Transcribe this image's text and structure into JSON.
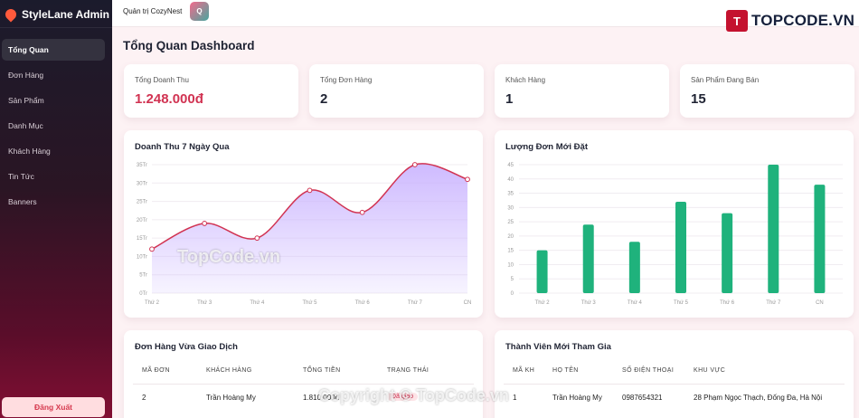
{
  "app": {
    "brand": "StyleLane Admin",
    "logo_icon": "flame-icon"
  },
  "sidebar": {
    "items": [
      {
        "label": "Tổng Quan",
        "active": true
      },
      {
        "label": "Đơn Hàng",
        "active": false
      },
      {
        "label": "Sản Phẩm",
        "active": false
      },
      {
        "label": "Danh Mục",
        "active": false
      },
      {
        "label": "Khách Hàng",
        "active": false
      },
      {
        "label": "Tin Tức",
        "active": false
      },
      {
        "label": "Banners",
        "active": false
      }
    ],
    "logout": "Đăng Xuất"
  },
  "topbar": {
    "title": "Quản trị CozyNest",
    "avatar_letter": "Q"
  },
  "watermark": {
    "logo_letter": "T",
    "logo_text": "TOPCODE.VN",
    "center": "TopCode.vn",
    "bottom": "Copyright © TopCode.vn"
  },
  "page": {
    "title": "Tổng Quan Dashboard"
  },
  "stats": [
    {
      "label": "Tổng Doanh Thu",
      "value": "1.248.000đ"
    },
    {
      "label": "Tổng Đơn Hàng",
      "value": "2"
    },
    {
      "label": "Khách Hàng",
      "value": "1"
    },
    {
      "label": "Sản Phẩm Đang Bán",
      "value": "15"
    }
  ],
  "chart_data": [
    {
      "type": "area",
      "title": "Doanh Thu 7 Ngày Qua",
      "categories": [
        "Thứ 2",
        "Thứ 3",
        "Thứ 4",
        "Thứ 5",
        "Thứ 6",
        "Thứ 7",
        "CN"
      ],
      "values": [
        12,
        19,
        15,
        28,
        22,
        35,
        31
      ],
      "yticks": [
        "0Tr",
        "5Tr",
        "10Tr",
        "15Tr",
        "20Tr",
        "25Tr",
        "30Tr",
        "35Tr"
      ],
      "ylim": [
        0,
        35
      ],
      "colors": {
        "line": "#d13352",
        "fill": "#c9b3ff"
      },
      "grid": true
    },
    {
      "type": "bar",
      "title": "Lượng Đơn Mới Đặt",
      "categories": [
        "Thứ 2",
        "Thứ 3",
        "Thứ 4",
        "Thứ 5",
        "Thứ 6",
        "Thứ 7",
        "CN"
      ],
      "values": [
        15,
        24,
        18,
        32,
        28,
        45,
        38
      ],
      "yticks": [
        "0",
        "5",
        "10",
        "15",
        "20",
        "25",
        "30",
        "35",
        "40",
        "45"
      ],
      "ylim": [
        0,
        45
      ],
      "colors": {
        "bar": "#1fb27c"
      },
      "grid": true
    }
  ],
  "orders": {
    "title": "Đơn Hàng Vừa Giao Dịch",
    "columns": [
      "MÃ ĐƠN",
      "KHÁCH HÀNG",
      "TỔNG TIỀN",
      "TRẠNG THÁI"
    ],
    "rows": [
      [
        "2",
        "Trần Hoàng My",
        "1.810.000đ",
        "Đã giao"
      ]
    ]
  },
  "members": {
    "title": "Thành Viên Mới Tham Gia",
    "columns": [
      "MÃ KH",
      "HỌ TÊN",
      "SỐ ĐIỆN THOẠI",
      "KHU VỰC"
    ],
    "rows": [
      [
        "1",
        "Trần Hoàng My",
        "0987654321",
        "28 Phạm Ngọc Thạch, Đống Đa, Hà Nội"
      ]
    ]
  }
}
